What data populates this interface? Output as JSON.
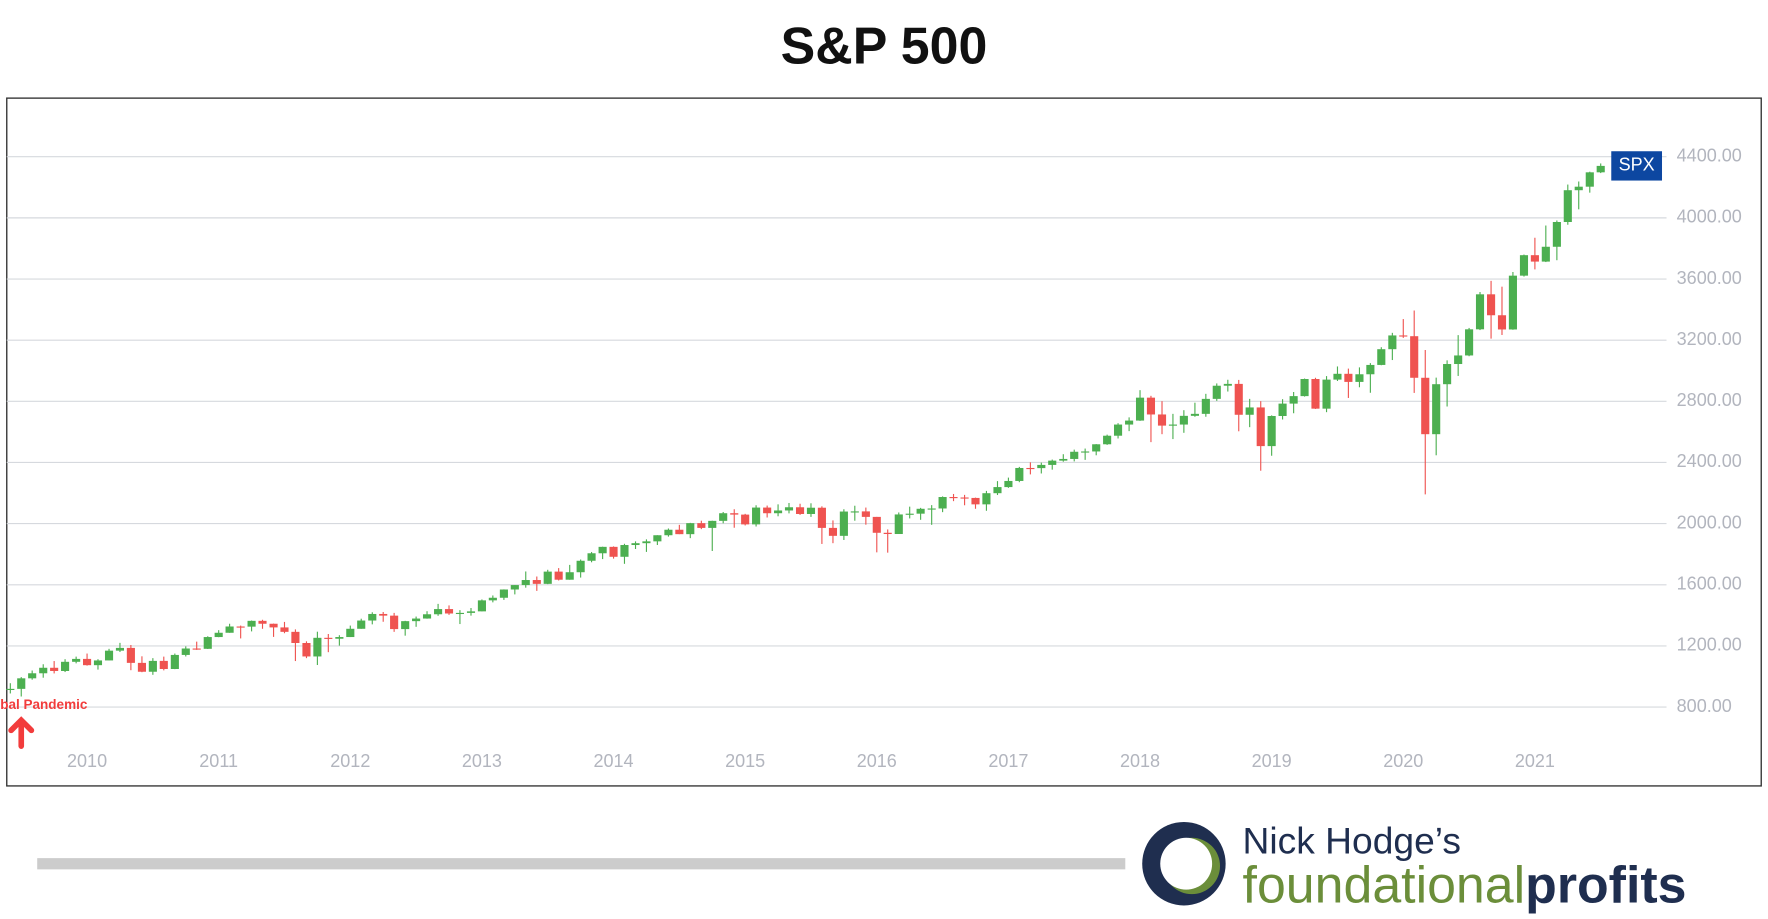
{
  "chart_data": {
    "type": "candlestick",
    "title": "S&P 500",
    "x": [
      2009.417,
      2009.5,
      2009.583,
      2009.667,
      2009.75,
      2009.833,
      2009.917,
      2010,
      2010.083,
      2010.167,
      2010.25,
      2010.333,
      2010.417,
      2010.5,
      2010.583,
      2010.667,
      2010.75,
      2010.833,
      2010.917,
      2011,
      2011.083,
      2011.167,
      2011.25,
      2011.333,
      2011.417,
      2011.5,
      2011.583,
      2011.667,
      2011.75,
      2011.833,
      2011.917,
      2012,
      2012.083,
      2012.167,
      2012.25,
      2012.333,
      2012.417,
      2012.5,
      2012.583,
      2012.667,
      2012.75,
      2012.833,
      2012.917,
      2013,
      2013.083,
      2013.167,
      2013.25,
      2013.333,
      2013.417,
      2013.5,
      2013.583,
      2013.667,
      2013.75,
      2013.833,
      2013.917,
      2014,
      2014.083,
      2014.167,
      2014.25,
      2014.333,
      2014.417,
      2014.5,
      2014.583,
      2014.667,
      2014.75,
      2014.833,
      2014.917,
      2015,
      2015.083,
      2015.167,
      2015.25,
      2015.333,
      2015.417,
      2015.5,
      2015.583,
      2015.667,
      2015.75,
      2015.833,
      2015.917,
      2016,
      2016.083,
      2016.167,
      2016.25,
      2016.333,
      2016.417,
      2016.5,
      2016.583,
      2016.667,
      2016.75,
      2016.833,
      2016.917,
      2017,
      2017.083,
      2017.167,
      2017.25,
      2017.333,
      2017.417,
      2017.5,
      2017.583,
      2017.667,
      2017.75,
      2017.833,
      2017.917,
      2018,
      2018.083,
      2018.167,
      2018.25,
      2018.333,
      2018.417,
      2018.5,
      2018.583,
      2018.667,
      2018.75,
      2018.833,
      2018.917,
      2019,
      2019.083,
      2019.167,
      2019.25,
      2019.333,
      2019.417,
      2019.5,
      2019.583,
      2019.667,
      2019.75,
      2019.833,
      2019.917,
      2020,
      2020.083,
      2020.167,
      2020.25,
      2020.333,
      2020.417,
      2020.5,
      2020.583,
      2020.667,
      2020.75,
      2020.833,
      2020.917,
      2021,
      2021.083,
      2021.167,
      2021.25,
      2021.333,
      2021.417,
      2021.5
    ],
    "open": [
      919,
      919,
      988,
      1021,
      1057,
      1036,
      1096,
      1115,
      1074,
      1105,
      1169,
      1187,
      1089,
      1031,
      1102,
      1049,
      1141,
      1183,
      1181,
      1258,
      1286,
      1327,
      1326,
      1364,
      1345,
      1321,
      1292,
      1219,
      1131,
      1253,
      1247,
      1258,
      1312,
      1366,
      1409,
      1398,
      1310,
      1362,
      1379,
      1407,
      1441,
      1412,
      1416,
      1426,
      1498,
      1515,
      1569,
      1598,
      1631,
      1606,
      1686,
      1633,
      1682,
      1757,
      1806,
      1848,
      1783,
      1860,
      1872,
      1884,
      1924,
      1960,
      1931,
      2003,
      1972,
      2018,
      2068,
      2059,
      1995,
      2105,
      2068,
      2086,
      2107,
      2063,
      2104,
      1972,
      1920,
      2079,
      2080,
      2044,
      1940,
      1932,
      2060,
      2065,
      2097,
      2099,
      2174,
      2171,
      2168,
      2126,
      2199,
      2239,
      2279,
      2364,
      2363,
      2384,
      2412,
      2423,
      2470,
      2472,
      2519,
      2575,
      2648,
      2674,
      2824,
      2714,
      2641,
      2648,
      2705,
      2718,
      2816,
      2902,
      2914,
      2712,
      2760,
      2507,
      2704,
      2785,
      2834,
      2946,
      2752,
      2942,
      2980,
      2927,
      2977,
      3038,
      3141,
      3231,
      3226,
      2954,
      2585,
      2912,
      3044,
      3100,
      3271,
      3500,
      3363,
      3270,
      3622,
      3756,
      3714,
      3811,
      3973,
      4181,
      4204,
      4298
    ],
    "high": [
      956,
      996,
      1039,
      1080,
      1101,
      1113,
      1130,
      1150,
      1113,
      1181,
      1220,
      1206,
      1132,
      1120,
      1130,
      1150,
      1197,
      1228,
      1263,
      1303,
      1345,
      1333,
      1366,
      1371,
      1346,
      1357,
      1308,
      1230,
      1293,
      1278,
      1270,
      1333,
      1378,
      1420,
      1422,
      1416,
      1364,
      1392,
      1427,
      1475,
      1465,
      1434,
      1448,
      1504,
      1530,
      1570,
      1598,
      1687,
      1654,
      1698,
      1709,
      1730,
      1765,
      1814,
      1849,
      1851,
      1868,
      1884,
      1897,
      1924,
      1968,
      1992,
      2005,
      2019,
      2019,
      2076,
      2094,
      2064,
      2120,
      2118,
      2126,
      2135,
      2130,
      2133,
      2113,
      2021,
      2094,
      2117,
      2105,
      2044,
      1962,
      2073,
      2111,
      2103,
      2121,
      2178,
      2194,
      2188,
      2170,
      2214,
      2278,
      2301,
      2371,
      2401,
      2399,
      2419,
      2454,
      2484,
      2491,
      2520,
      2582,
      2657,
      2695,
      2873,
      2836,
      2801,
      2718,
      2742,
      2791,
      2849,
      2917,
      2941,
      2940,
      2816,
      2801,
      2708,
      2814,
      2861,
      2949,
      2954,
      2965,
      3028,
      3014,
      3022,
      3050,
      3154,
      3248,
      3338,
      3394,
      3136,
      2955,
      3068,
      3233,
      3280,
      3515,
      3588,
      3550,
      3646,
      3760,
      3870,
      3950,
      3983,
      4218,
      4238,
      4302,
      4356
    ],
    "low": [
      889,
      869,
      979,
      992,
      1020,
      1029,
      1086,
      1071,
      1045,
      1105,
      1160,
      1041,
      1028,
      1011,
      1040,
      1048,
      1131,
      1174,
      1180,
      1257,
      1286,
      1249,
      1295,
      1312,
      1259,
      1283,
      1101,
      1120,
      1075,
      1159,
      1202,
      1258,
      1312,
      1341,
      1358,
      1292,
      1267,
      1325,
      1378,
      1397,
      1403,
      1343,
      1398,
      1426,
      1485,
      1501,
      1537,
      1581,
      1560,
      1604,
      1628,
      1633,
      1647,
      1747,
      1768,
      1771,
      1737,
      1834,
      1815,
      1860,
      1915,
      1931,
      1905,
      1964,
      1821,
      2002,
      1973,
      1988,
      1981,
      2040,
      2048,
      2067,
      2057,
      2044,
      1867,
      1872,
      1893,
      2019,
      1993,
      1812,
      1810,
      1932,
      2034,
      2025,
      1992,
      2075,
      2147,
      2120,
      2097,
      2084,
      2187,
      2234,
      2271,
      2322,
      2328,
      2353,
      2405,
      2407,
      2417,
      2447,
      2515,
      2557,
      2605,
      2672,
      2533,
      2585,
      2553,
      2594,
      2699,
      2699,
      2803,
      2864,
      2604,
      2631,
      2346,
      2444,
      2681,
      2722,
      2831,
      2750,
      2729,
      2933,
      2822,
      2892,
      2856,
      3036,
      3070,
      3215,
      2855,
      2191,
      2447,
      2766,
      2966,
      3095,
      3266,
      3210,
      3234,
      3268,
      3616,
      3663,
      3711,
      3723,
      3955,
      4056,
      4165,
      4293
    ],
    "close": [
      919,
      988,
      1021,
      1057,
      1036,
      1096,
      1115,
      1074,
      1105,
      1169,
      1187,
      1089,
      1031,
      1102,
      1049,
      1141,
      1183,
      1181,
      1258,
      1286,
      1327,
      1326,
      1364,
      1345,
      1321,
      1292,
      1219,
      1131,
      1253,
      1247,
      1258,
      1312,
      1366,
      1409,
      1398,
      1310,
      1362,
      1379,
      1407,
      1441,
      1412,
      1416,
      1426,
      1498,
      1515,
      1569,
      1598,
      1631,
      1606,
      1686,
      1633,
      1682,
      1757,
      1806,
      1848,
      1783,
      1860,
      1872,
      1884,
      1924,
      1960,
      1931,
      2003,
      1972,
      2018,
      2068,
      2059,
      1995,
      2105,
      2068,
      2086,
      2107,
      2063,
      2104,
      1972,
      1920,
      2079,
      2080,
      2044,
      1940,
      1932,
      2060,
      2065,
      2097,
      2099,
      2174,
      2171,
      2168,
      2126,
      2199,
      2239,
      2279,
      2364,
      2363,
      2384,
      2412,
      2423,
      2470,
      2472,
      2519,
      2575,
      2648,
      2674,
      2824,
      2714,
      2641,
      2648,
      2705,
      2718,
      2816,
      2902,
      2914,
      2712,
      2760,
      2507,
      2704,
      2785,
      2834,
      2946,
      2752,
      2942,
      2980,
      2927,
      2977,
      3038,
      3141,
      3231,
      3226,
      2954,
      2585,
      2912,
      3044,
      3100,
      3271,
      3500,
      3363,
      3270,
      3622,
      3756,
      3714,
      3811,
      3973,
      4181,
      4204,
      4298,
      4340
    ],
    "up_color": "#4caf50",
    "down_color": "#ef5350",
    "xlim": [
      2009.39,
      2022.0
    ],
    "xticks": [
      2010,
      2011,
      2012,
      2013,
      2014,
      2015,
      2016,
      2017,
      2018,
      2019,
      2020,
      2021
    ],
    "ylim": [
      557,
      4776
    ],
    "yticks": [
      {
        "value": 800,
        "label": "800.00"
      },
      {
        "value": 1200,
        "label": "1200.00"
      },
      {
        "value": 1600,
        "label": "1600.00"
      },
      {
        "value": 2000,
        "label": "2000.00"
      },
      {
        "value": 2400,
        "label": "2400.00"
      },
      {
        "value": 2800,
        "label": "2800.00"
      },
      {
        "value": 3200,
        "label": "3200.00"
      },
      {
        "value": 3600,
        "label": "3600.00"
      },
      {
        "value": 4000,
        "label": "4000.00"
      },
      {
        "value": 4400,
        "label": "4400.00"
      }
    ],
    "grid": true,
    "price_label": "SPX",
    "annotation": "Global Pandemic"
  },
  "footer": {
    "brand_owner": "Nick Hodge’s",
    "brand_first": "foundational",
    "brand_second": "profits"
  }
}
